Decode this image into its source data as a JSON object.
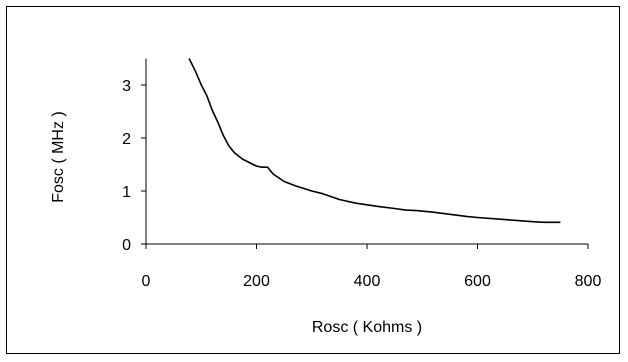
{
  "chart_data": {
    "type": "line",
    "title": "",
    "xlabel": "Rosc ( Kohms )",
    "ylabel": "Fosc ( MHz )",
    "xlim": [
      0,
      800
    ],
    "ylim": [
      0,
      3.5
    ],
    "x_ticks": [
      0,
      200,
      400,
      600,
      800
    ],
    "y_ticks": [
      0,
      1,
      2,
      3
    ],
    "x_tick_labels": [
      "0",
      "200",
      "400",
      "600",
      "800"
    ],
    "y_tick_labels": [
      "0",
      "1",
      "2",
      "3"
    ],
    "grid": false,
    "legend": "none",
    "line_color": "#000000",
    "series": [
      {
        "x": [
          78,
          90,
          100,
          110,
          120,
          130,
          140,
          150,
          160,
          175,
          190,
          200,
          210,
          220,
          230,
          250,
          270,
          300,
          320,
          350,
          380,
          400,
          420,
          450,
          470,
          490,
          520,
          550,
          580,
          600,
          650,
          700,
          720,
          750
        ],
        "y": [
          3.6,
          3.25,
          3.0,
          2.8,
          2.52,
          2.3,
          2.05,
          1.85,
          1.72,
          1.6,
          1.52,
          1.47,
          1.45,
          1.45,
          1.32,
          1.18,
          1.1,
          1.0,
          0.95,
          0.84,
          0.77,
          0.74,
          0.71,
          0.67,
          0.64,
          0.63,
          0.6,
          0.56,
          0.52,
          0.5,
          0.46,
          0.42,
          0.41,
          0.41
        ]
      }
    ]
  }
}
